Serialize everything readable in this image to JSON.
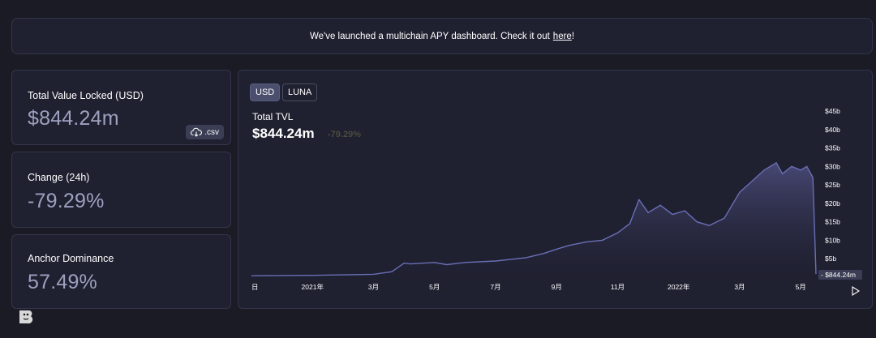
{
  "banner": {
    "text": "We've launched a multichain APY dashboard. Check it out",
    "link_label": "here",
    "suffix": "!"
  },
  "cards": {
    "tvl": {
      "label": "Total Value Locked (USD)",
      "value": "$844.24m",
      "csv_label": ".csv"
    },
    "change": {
      "label": "Change (24h)",
      "value": "-79.29%"
    },
    "dominance": {
      "label": "Anchor Dominance",
      "value": "57.49%"
    }
  },
  "chart": {
    "toggle_usd": "USD",
    "toggle_luna": "LUNA",
    "title": "Total TVL",
    "value": "$844.24m",
    "change": "-79.29%",
    "current_label": "$844.24m"
  },
  "chart_data": {
    "type": "area",
    "title": "Total TVL",
    "ylim": [
      0,
      45
    ],
    "yticks": [
      "$5b",
      "$10b",
      "$15b",
      "$20b",
      "$25b",
      "$30b",
      "$35b",
      "$40b",
      "$45b"
    ],
    "ytick_values": [
      5,
      10,
      15,
      20,
      25,
      30,
      35,
      40,
      45
    ],
    "xticks": [
      {
        "label": "日",
        "t": 0
      },
      {
        "label": "2021年",
        "t": 2
      },
      {
        "label": "3月",
        "t": 4
      },
      {
        "label": "5月",
        "t": 6
      },
      {
        "label": "7月",
        "t": 8
      },
      {
        "label": "9月",
        "t": 10
      },
      {
        "label": "11月",
        "t": 12
      },
      {
        "label": "2022年",
        "t": 14
      },
      {
        "label": "3月",
        "t": 16
      },
      {
        "label": "5月",
        "t": 18
      }
    ],
    "x": [
      0,
      2,
      4,
      4.6,
      5,
      5.2,
      6,
      6.4,
      7,
      8,
      9,
      9.6,
      10,
      10.4,
      11,
      11.5,
      12,
      12.4,
      12.7,
      13,
      13.4,
      13.8,
      14.2,
      14.6,
      15,
      15.5,
      16,
      16.4,
      16.8,
      17.2,
      17.4,
      17.7,
      18,
      18.2,
      18.4,
      18.5
    ],
    "values": [
      0.4,
      0.5,
      0.8,
      1.5,
      3.8,
      3.6,
      4.0,
      3.4,
      4.0,
      4.4,
      5.3,
      6.5,
      7.6,
      8.6,
      9.6,
      10.0,
      12.0,
      14.5,
      21.0,
      17.5,
      19.5,
      17.0,
      18.0,
      15.0,
      14.0,
      16.0,
      23.0,
      26.0,
      29.0,
      31.0,
      28.0,
      30.0,
      29.0,
      30.0,
      27.0,
      0.84
    ],
    "grid": false,
    "legend": "none"
  },
  "colors": {
    "line": "#6a6fb5",
    "fill_top": "#4a4a78",
    "fill_bottom": "#1f2030",
    "panel": "#1f2030",
    "border": "#34364a",
    "value_text": "#9da1bf"
  },
  "icons": {
    "csv": "cloud-download-icon",
    "play": "play-icon",
    "logo": "bear-logo-icon"
  }
}
